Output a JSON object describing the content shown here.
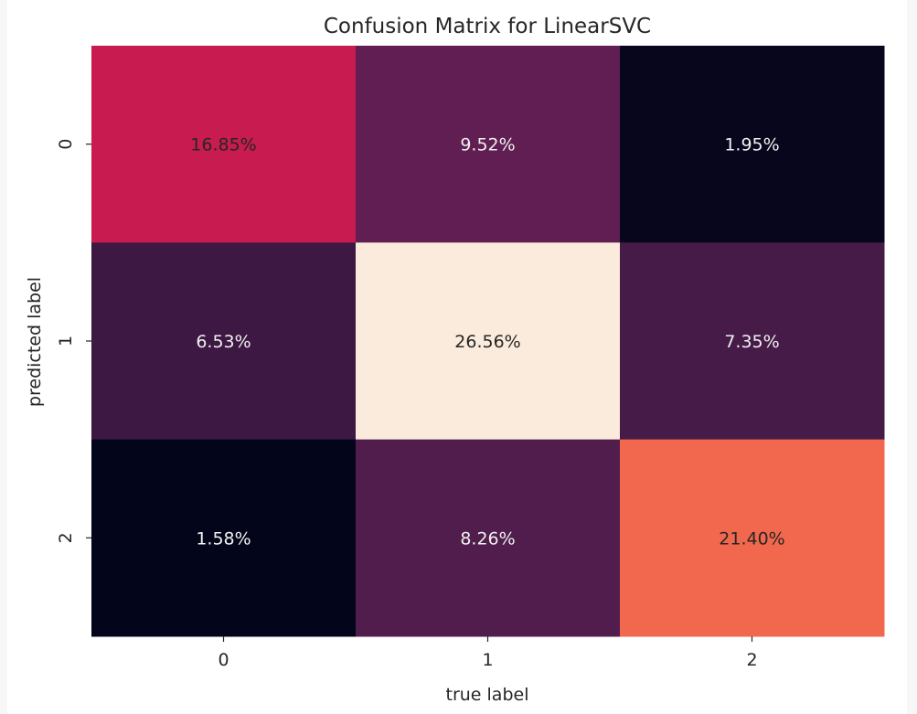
{
  "chart_data": {
    "type": "heatmap",
    "title": "Confusion Matrix for LinearSVC",
    "xlabel": "true label",
    "ylabel": "predicted label",
    "x_categories": [
      "0",
      "1",
      "2"
    ],
    "y_categories": [
      "0",
      "1",
      "2"
    ],
    "values": [
      [
        16.85,
        9.52,
        1.95
      ],
      [
        6.53,
        26.56,
        7.35
      ],
      [
        1.58,
        8.26,
        21.4
      ]
    ],
    "cell_labels": [
      [
        "16.85%",
        "9.52%",
        "1.95%"
      ],
      [
        "6.53%",
        "26.56%",
        "7.35%"
      ],
      [
        "1.58%",
        "8.26%",
        "21.40%"
      ]
    ],
    "colormap": "rocket",
    "colorbar": false,
    "grid": false
  }
}
